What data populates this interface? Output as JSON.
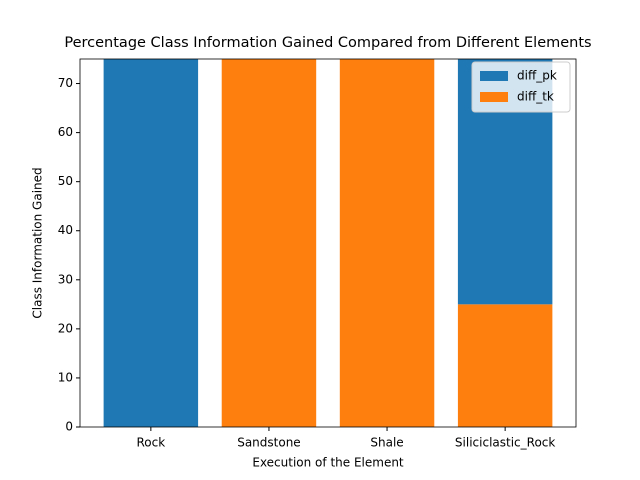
{
  "chart_data": {
    "type": "bar",
    "stacked": true,
    "title": "Percentage Class Information Gained Compared from Different Elements",
    "x_label": "Execution of the Element",
    "y_label": "Class Information Gained",
    "categories": [
      "Rock",
      "Sandstone",
      "Shale",
      "Siliciclastic_Rock"
    ],
    "series": [
      {
        "name": "diff_pk",
        "color": "#1f77b4",
        "values": [
          75,
          0,
          0,
          50
        ]
      },
      {
        "name": "diff_tk",
        "color": "#ff7f0e",
        "values": [
          0,
          75,
          75,
          25
        ]
      }
    ],
    "stack_order": [
      1,
      0
    ],
    "ylim": [
      0,
      75
    ],
    "yticks": [
      0,
      10,
      20,
      30,
      40,
      50,
      60,
      70
    ],
    "legend": "upper right"
  }
}
